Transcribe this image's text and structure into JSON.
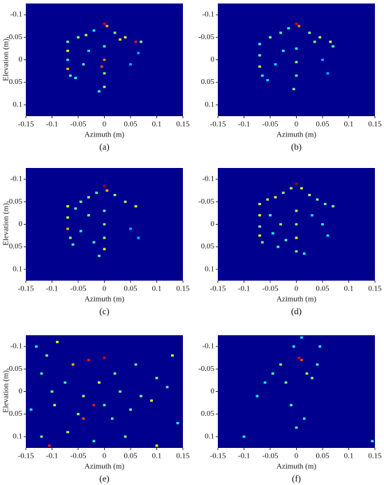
{
  "chart_data": [
    {
      "type": "heatmap",
      "xlabel": "Azimuth (m)",
      "ylabel": "Elevation (m)",
      "caption": "(a)",
      "background": "#00008f",
      "colormap": "jet",
      "xlim": [
        -0.15,
        0.15
      ],
      "ylim": [
        0.125,
        -0.125
      ],
      "xticks": [
        -0.15,
        -0.1,
        -0.05,
        0,
        0.05,
        0.1,
        0.15
      ],
      "yticks": [
        -0.1,
        -0.05,
        0,
        0.05,
        0.1
      ],
      "x": [
        -0.07,
        -0.07,
        -0.07,
        -0.07,
        -0.065,
        -0.05,
        -0.035,
        -0.02,
        0,
        0.005,
        0.02,
        0.04,
        0.06,
        0.07,
        0,
        0,
        0,
        0,
        -0.01,
        -0.04,
        -0.03,
        -0.005,
        0.05,
        0.065,
        -0.055,
        0.03
      ],
      "y": [
        -0.04,
        -0.02,
        0,
        0.02,
        0.035,
        -0.05,
        -0.055,
        -0.065,
        -0.08,
        -0.075,
        -0.06,
        -0.05,
        -0.04,
        -0.04,
        -0.03,
        0,
        0.03,
        0.06,
        0.07,
        0.01,
        -0.02,
        0.015,
        0.01,
        -0.015,
        0.04,
        -0.045
      ],
      "values": [
        0.5,
        0.6,
        0.4,
        0.7,
        0.45,
        0.5,
        0.55,
        0.4,
        0.9,
        0.7,
        0.5,
        0.6,
        0.85,
        0.5,
        0.45,
        0.75,
        0.5,
        0.55,
        0.4,
        0.45,
        0.35,
        0.8,
        0.3,
        0.3,
        0.4,
        0.65
      ]
    },
    {
      "type": "heatmap",
      "xlabel": "Azimuth (m)",
      "caption": "(b)",
      "background": "#00008f",
      "colormap": "jet",
      "xlim": [
        -0.15,
        0.15
      ],
      "ylim": [
        0.125,
        -0.125
      ],
      "xticks": [
        -0.15,
        -0.1,
        -0.05,
        0,
        0.05,
        0.1,
        0.15
      ],
      "yticks": [
        -0.1,
        -0.05,
        0,
        0.05,
        0.1
      ],
      "x": [
        -0.07,
        -0.07,
        -0.07,
        -0.065,
        -0.05,
        -0.03,
        -0.015,
        0,
        0.005,
        0.025,
        0.045,
        0.065,
        0.07,
        0,
        0,
        0,
        -0.005,
        -0.04,
        -0.025,
        0.05,
        0.06,
        -0.055,
        0.035
      ],
      "y": [
        -0.035,
        -0.01,
        0.015,
        0.035,
        -0.05,
        -0.06,
        -0.07,
        -0.08,
        -0.075,
        -0.06,
        -0.05,
        -0.04,
        -0.03,
        -0.025,
        0.005,
        0.035,
        0.065,
        0.01,
        -0.02,
        0.0,
        0.03,
        0.045,
        -0.04
      ],
      "values": [
        0.45,
        0.5,
        0.55,
        0.4,
        0.5,
        0.45,
        0.4,
        0.9,
        0.75,
        0.5,
        0.55,
        0.6,
        0.45,
        0.4,
        0.5,
        0.45,
        0.5,
        0.35,
        0.4,
        0.3,
        0.3,
        0.35,
        0.5
      ]
    },
    {
      "type": "heatmap",
      "xlabel": "Azimuth (m)",
      "ylabel": "Elevation (m)",
      "caption": "(c)",
      "background": "#00008f",
      "colormap": "jet",
      "xlim": [
        -0.15,
        0.15
      ],
      "ylim": [
        0.125,
        -0.125
      ],
      "xticks": [
        -0.15,
        -0.1,
        -0.05,
        0,
        0.05,
        0.1,
        0.15
      ],
      "yticks": [
        -0.1,
        -0.05,
        0,
        0.05,
        0.1
      ],
      "x": [
        -0.07,
        -0.07,
        -0.07,
        -0.065,
        -0.06,
        -0.045,
        -0.03,
        -0.015,
        0,
        0.005,
        0.02,
        0.04,
        0.06,
        0,
        0,
        0,
        0,
        -0.01,
        -0.045,
        -0.03,
        -0.055,
        0.05,
        0.065,
        -0.02
      ],
      "y": [
        -0.04,
        -0.015,
        0.01,
        0.03,
        0.045,
        -0.05,
        -0.06,
        -0.07,
        -0.085,
        -0.075,
        -0.065,
        -0.05,
        -0.04,
        -0.03,
        0,
        0.03,
        0.055,
        0.07,
        0.015,
        -0.02,
        -0.035,
        0.01,
        0.03,
        0.04
      ],
      "values": [
        0.6,
        0.55,
        0.7,
        0.5,
        0.45,
        0.5,
        0.55,
        0.45,
        0.95,
        0.7,
        0.5,
        0.55,
        0.6,
        0.45,
        0.5,
        0.55,
        0.6,
        0.45,
        0.4,
        0.5,
        0.45,
        0.3,
        0.3,
        0.45
      ]
    },
    {
      "type": "heatmap",
      "xlabel": "Azimuth (m)",
      "caption": "(d)",
      "background": "#00008f",
      "colormap": "jet",
      "xlim": [
        -0.15,
        0.15
      ],
      "ylim": [
        0.125,
        -0.125
      ],
      "xticks": [
        -0.15,
        -0.1,
        -0.05,
        0,
        0.05,
        0.1,
        0.15
      ],
      "yticks": [
        -0.1,
        -0.05,
        0,
        0.05,
        0.1
      ],
      "x": [
        -0.07,
        -0.07,
        -0.07,
        -0.07,
        -0.065,
        -0.055,
        -0.04,
        -0.025,
        -0.01,
        0,
        0.01,
        0.025,
        0.04,
        0.055,
        0.07,
        0,
        0,
        0,
        0,
        -0.05,
        -0.03,
        -0.045,
        -0.02,
        0.03,
        0.05,
        0.06,
        -0.035,
        0.015
      ],
      "y": [
        -0.045,
        -0.02,
        0.005,
        0.025,
        0.04,
        -0.055,
        -0.06,
        -0.07,
        -0.08,
        -0.09,
        -0.08,
        -0.065,
        -0.055,
        -0.045,
        -0.04,
        -0.03,
        0.0,
        0.03,
        0.06,
        -0.02,
        0.0,
        0.02,
        0.035,
        -0.02,
        0.0,
        0.025,
        0.05,
        0.065
      ],
      "values": [
        0.55,
        0.6,
        0.5,
        0.6,
        0.5,
        0.55,
        0.6,
        0.5,
        0.55,
        0.95,
        0.6,
        0.55,
        0.5,
        0.45,
        0.5,
        0.55,
        0.5,
        0.6,
        0.5,
        0.45,
        0.5,
        0.4,
        0.45,
        0.35,
        0.4,
        0.35,
        0.45,
        0.4
      ]
    },
    {
      "type": "heatmap",
      "xlabel": "Azimuth (m)",
      "ylabel": "Elevation (m)",
      "caption": "(e)",
      "background": "#00008f",
      "colormap": "jet",
      "xlim": [
        -0.15,
        0.15
      ],
      "ylim": [
        0.125,
        -0.125
      ],
      "xticks": [
        -0.15,
        -0.1,
        -0.05,
        0,
        0.05,
        0.1,
        0.15
      ],
      "yticks": [
        -0.1,
        -0.05,
        0,
        0.05,
        0.1
      ],
      "x": [
        -0.13,
        -0.11,
        -0.09,
        -0.12,
        -0.06,
        -0.03,
        0.0,
        0.02,
        0.06,
        0.1,
        0.13,
        -0.1,
        -0.075,
        -0.04,
        -0.01,
        0.03,
        0.07,
        0.12,
        -0.14,
        -0.095,
        -0.05,
        -0.02,
        0.015,
        0.05,
        0.09,
        0.14,
        -0.12,
        -0.07,
        -0.02,
        0.04,
        0.1,
        -0.105,
        -0.04,
        0.0
      ],
      "y": [
        -0.1,
        -0.08,
        -0.11,
        -0.04,
        -0.06,
        -0.07,
        -0.075,
        -0.04,
        -0.06,
        -0.03,
        -0.08,
        0.0,
        -0.02,
        0.01,
        -0.02,
        0.0,
        0.01,
        -0.01,
        0.04,
        0.03,
        0.05,
        0.03,
        0.06,
        0.04,
        0.02,
        0.07,
        0.1,
        0.09,
        0.11,
        0.1,
        0.12,
        0.12,
        0.06,
        0.03
      ],
      "values": [
        0.4,
        0.5,
        0.6,
        0.45,
        0.7,
        0.85,
        0.9,
        0.5,
        0.45,
        0.5,
        0.6,
        0.5,
        0.45,
        0.55,
        0.6,
        0.5,
        0.5,
        0.45,
        0.4,
        0.55,
        0.5,
        0.85,
        0.45,
        0.5,
        0.6,
        0.4,
        0.5,
        0.55,
        0.45,
        0.5,
        0.6,
        0.85,
        0.8,
        0.45
      ]
    },
    {
      "type": "heatmap",
      "xlabel": "Azimuth (m)",
      "caption": "(f)",
      "background": "#00008f",
      "colormap": "jet",
      "xlim": [
        -0.15,
        0.15
      ],
      "ylim": [
        0.125,
        -0.125
      ],
      "xticks": [
        -0.15,
        -0.1,
        -0.05,
        0,
        0.05,
        0.1,
        0.15
      ],
      "yticks": [
        -0.1,
        -0.05,
        0,
        0.05,
        0.1
      ],
      "x": [
        0.005,
        0.01,
        -0.03,
        -0.045,
        -0.06,
        0.04,
        -0.005,
        0.02,
        -0.02,
        0.03,
        -0.01,
        0.015,
        0.0,
        -0.1,
        -0.075,
        0.145,
        0.01,
        0.045
      ],
      "y": [
        -0.075,
        -0.07,
        -0.06,
        -0.04,
        -0.02,
        -0.06,
        -0.1,
        -0.04,
        -0.02,
        -0.03,
        0.03,
        0.06,
        0.08,
        0.1,
        0.01,
        0.11,
        -0.12,
        -0.1
      ],
      "values": [
        0.9,
        0.8,
        0.5,
        0.45,
        0.4,
        0.45,
        0.4,
        0.55,
        0.5,
        0.5,
        0.45,
        0.4,
        0.45,
        0.4,
        0.4,
        0.45,
        0.35,
        0.4
      ]
    }
  ]
}
